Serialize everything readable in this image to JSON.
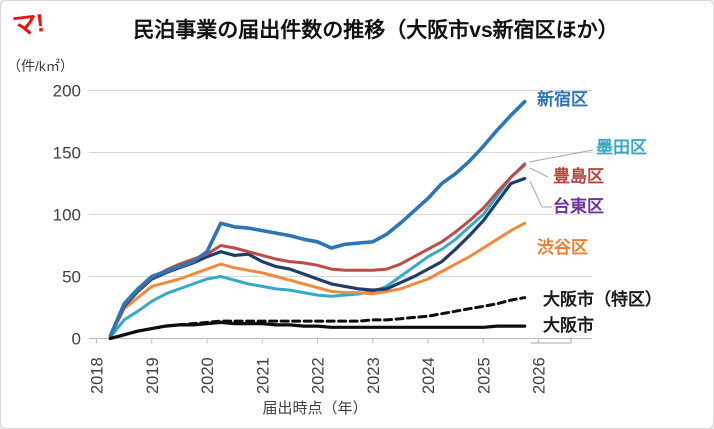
{
  "header": {
    "logo_text": "マ!"
  },
  "chart_data": {
    "type": "line",
    "title": "民泊事業の届出件数の推移（大阪市vs新宿区ほか）",
    "y_unit_label": "（件/k㎡）",
    "xlabel": "届出時点（年）",
    "ylim": [
      0,
      200
    ],
    "y_ticks": [
      0,
      50,
      100,
      150,
      200
    ],
    "x_ticks": [
      2018,
      2019,
      2020,
      2021,
      2022,
      2023,
      2024,
      2025,
      2026
    ],
    "grid": "horizontal-light",
    "legend_position": "right-of-line-ends",
    "x": [
      2018.25,
      2018.5,
      2018.75,
      2019,
      2019.25,
      2019.5,
      2019.75,
      2020,
      2020.25,
      2020.5,
      2020.75,
      2021,
      2021.25,
      2021.5,
      2021.75,
      2022,
      2022.25,
      2022.5,
      2022.75,
      2023,
      2023.25,
      2023.5,
      2023.75,
      2024,
      2024.25,
      2024.5,
      2024.75,
      2025,
      2025.25,
      2025.5,
      2025.75
    ],
    "series": [
      {
        "name": "新宿区",
        "slug": "shinjuku",
        "color": "#2e75b6",
        "label_color": "#2e75b6",
        "style": "solid",
        "width": 3.6,
        "values": [
          2,
          28,
          40,
          50,
          54,
          58,
          62,
          70,
          93,
          90,
          89,
          87,
          85,
          83,
          80,
          78,
          73,
          76,
          77,
          78,
          84,
          93,
          103,
          113,
          125,
          133,
          143,
          155,
          168,
          180,
          191
        ]
      },
      {
        "name": "墨田区",
        "slug": "sumida",
        "color": "#35a9c6",
        "label_color": "#35a9c6",
        "style": "solid",
        "width": 3,
        "values": [
          1,
          15,
          22,
          30,
          36,
          40,
          44,
          48,
          50,
          47,
          44,
          42,
          40,
          39,
          37,
          35,
          34,
          35,
          36,
          38,
          42,
          50,
          58,
          66,
          72,
          80,
          90,
          100,
          115,
          130,
          141
        ]
      },
      {
        "name": "豊島区",
        "slug": "toshima",
        "color": "#bf4b48",
        "label_color": "#b84742",
        "style": "solid",
        "width": 3,
        "values": [
          2,
          27,
          39,
          49,
          55,
          60,
          64,
          68,
          75,
          73,
          70,
          67,
          64,
          62,
          61,
          59,
          56,
          55,
          55,
          55,
          56,
          60,
          66,
          72,
          78,
          86,
          95,
          105,
          118,
          130,
          140
        ]
      },
      {
        "name": "台東区",
        "slug": "taito",
        "color": "#1f3d68",
        "label_color": "#7030a0",
        "style": "solid",
        "width": 3.2,
        "values": [
          2,
          26,
          38,
          48,
          53,
          57,
          61,
          66,
          70,
          67,
          68,
          62,
          58,
          56,
          52,
          48,
          44,
          42,
          40,
          39,
          40,
          45,
          50,
          56,
          62,
          72,
          83,
          95,
          110,
          125,
          129
        ]
      },
      {
        "name": "渋谷区",
        "slug": "shibuya",
        "color": "#f08a3c",
        "label_color": "#ed7d31",
        "style": "solid",
        "width": 3,
        "values": [
          2,
          24,
          33,
          42,
          45,
          48,
          52,
          56,
          60,
          57,
          55,
          53,
          50,
          47,
          44,
          41,
          38,
          37,
          37,
          36,
          38,
          40,
          44,
          48,
          54,
          60,
          66,
          73,
          80,
          87,
          93
        ]
      },
      {
        "name": "大阪市（特区）",
        "slug": "osaka-city-tokku",
        "color": "#0d0d0d",
        "label_color": "#1a1a1a",
        "style": "dashed",
        "width": 3,
        "values": [
          0,
          3,
          6,
          8,
          10,
          11,
          12,
          13,
          14,
          14,
          14,
          14,
          14,
          14,
          14,
          14,
          14,
          14,
          14,
          15,
          15,
          16,
          17,
          18,
          20,
          22,
          24,
          26,
          28,
          31,
          33
        ]
      },
      {
        "name": "大阪市",
        "slug": "osaka-city",
        "color": "#0d0d0d",
        "label_color": "#1a1a1a",
        "style": "solid",
        "width": 3.2,
        "values": [
          0,
          3,
          6,
          8,
          10,
          11,
          11,
          12,
          13,
          12,
          12,
          12,
          11,
          11,
          10,
          10,
          9,
          9,
          9,
          9,
          9,
          9,
          9,
          9,
          9,
          9,
          9,
          9,
          10,
          10,
          10
        ]
      }
    ]
  }
}
